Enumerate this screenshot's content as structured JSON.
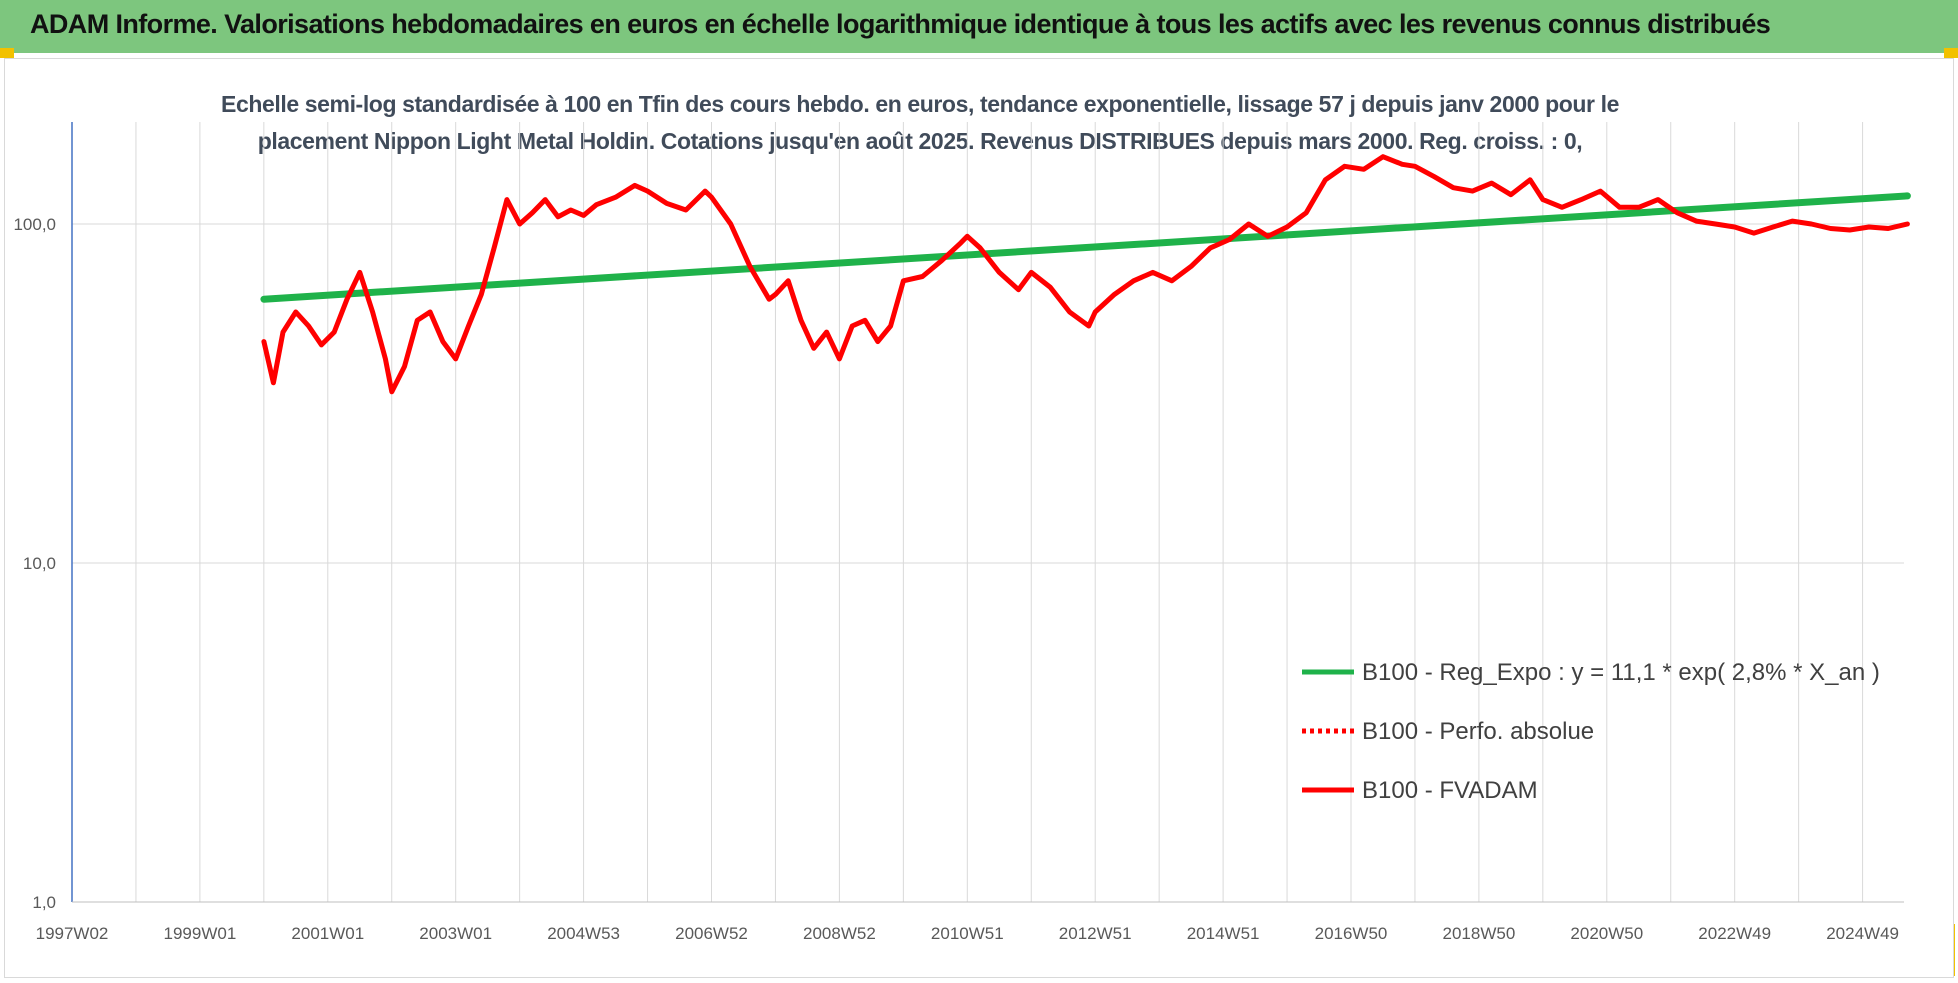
{
  "header": {
    "title": "ADAM Informe. Valorisations hebdomadaires en euros en échelle logarithmique identique à tous les actifs avec les revenus connus distribués",
    "background": "#7dc67e",
    "accent": "#f2c100"
  },
  "chart_data": {
    "type": "line",
    "title_line1": "Echelle semi-log standardisée à 100 en Tfin des cours hebdo. en euros, tendance exponentielle, lissage 57 j depuis janv 2000 pour le",
    "title_line2": "placement Nippon Light Metal Holdin. Cotations jusqu'en août 2025.  Revenus DISTRIBUES depuis mars 2000. Reg. croiss. : 0,",
    "y_scale": "log",
    "ylim": [
      1,
      200
    ],
    "y_ticks": [
      "100,0",
      "10,0",
      "1,0"
    ],
    "y_tick_values": [
      100,
      10,
      1
    ],
    "x_ticks": [
      "1997W02",
      "1999W01",
      "2001W01",
      "2003W01",
      "2004W53",
      "2006W52",
      "2008W52",
      "2010W51",
      "2012W51",
      "2014W51",
      "2016W50",
      "2018W50",
      "2020W50",
      "2022W49",
      "2024W49"
    ],
    "x_tick_years": [
      1997.0,
      1999.0,
      2001.0,
      2003.0,
      2005.0,
      2007.0,
      2009.0,
      2011.0,
      2013.0,
      2015.0,
      2017.0,
      2019.0,
      2021.0,
      2023.0,
      2025.0
    ],
    "xlim": [
      1997.0,
      2025.7
    ],
    "grid": "vertical",
    "legend_position": "lower-right",
    "series": [
      {
        "name": "B100 - Reg_Expo : y = 11,1 * exp( 2,8% *  X_an )",
        "color": "#1fb24a",
        "style": "solid",
        "x": [
          2000.0,
          2025.7
        ],
        "values": [
          60,
          121
        ]
      },
      {
        "name": "B100 - Perfo. absolue",
        "color": "#ff0000",
        "style": "dotted",
        "x": [],
        "values": []
      },
      {
        "name": "B100 - FVADAM",
        "color": "#ff0000",
        "style": "solid",
        "x": [
          2000.0,
          2000.15,
          2000.3,
          2000.5,
          2000.7,
          2000.9,
          2001.1,
          2001.3,
          2001.5,
          2001.7,
          2001.9,
          2002.0,
          2002.2,
          2002.4,
          2002.6,
          2002.8,
          2003.0,
          2003.2,
          2003.4,
          2003.6,
          2003.8,
          2004.0,
          2004.2,
          2004.4,
          2004.6,
          2004.8,
          2005.0,
          2005.2,
          2005.5,
          2005.8,
          2006.0,
          2006.3,
          2006.6,
          2006.9,
          2007.0,
          2007.3,
          2007.6,
          2007.9,
          2008.0,
          2008.2,
          2008.4,
          2008.6,
          2008.8,
          2009.0,
          2009.2,
          2009.4,
          2009.6,
          2009.8,
          2010.0,
          2010.3,
          2010.6,
          2010.9,
          2011.0,
          2011.2,
          2011.5,
          2011.8,
          2012.0,
          2012.3,
          2012.6,
          2012.9,
          2013.0,
          2013.3,
          2013.6,
          2013.9,
          2014.2,
          2014.5,
          2014.8,
          2015.1,
          2015.4,
          2015.7,
          2016.0,
          2016.3,
          2016.6,
          2016.9,
          2017.2,
          2017.5,
          2017.8,
          2018.0,
          2018.3,
          2018.6,
          2018.9,
          2019.2,
          2019.5,
          2019.8,
          2020.0,
          2020.3,
          2020.6,
          2020.9,
          2021.2,
          2021.5,
          2021.8,
          2022.1,
          2022.4,
          2022.7,
          2023.0,
          2023.3,
          2023.6,
          2023.9,
          2024.2,
          2024.5,
          2024.8,
          2025.1,
          2025.4,
          2025.7
        ],
        "values": [
          45,
          34,
          48,
          55,
          50,
          44,
          48,
          60,
          72,
          55,
          40,
          32,
          38,
          52,
          55,
          45,
          40,
          50,
          62,
          85,
          118,
          100,
          108,
          118,
          105,
          110,
          106,
          114,
          120,
          130,
          125,
          115,
          110,
          125,
          120,
          100,
          75,
          60,
          62,
          68,
          52,
          43,
          48,
          40,
          50,
          52,
          45,
          50,
          68,
          70,
          78,
          88,
          92,
          85,
          72,
          64,
          72,
          65,
          55,
          50,
          55,
          62,
          68,
          72,
          68,
          75,
          85,
          90,
          100,
          92,
          98,
          108,
          135,
          148,
          145,
          158,
          150,
          148,
          138,
          128,
          125,
          132,
          122,
          135,
          118,
          112,
          118,
          125,
          112,
          112,
          118,
          108,
          102,
          100,
          98,
          94,
          98,
          102,
          100,
          97,
          96,
          98,
          97,
          100
        ]
      }
    ]
  }
}
